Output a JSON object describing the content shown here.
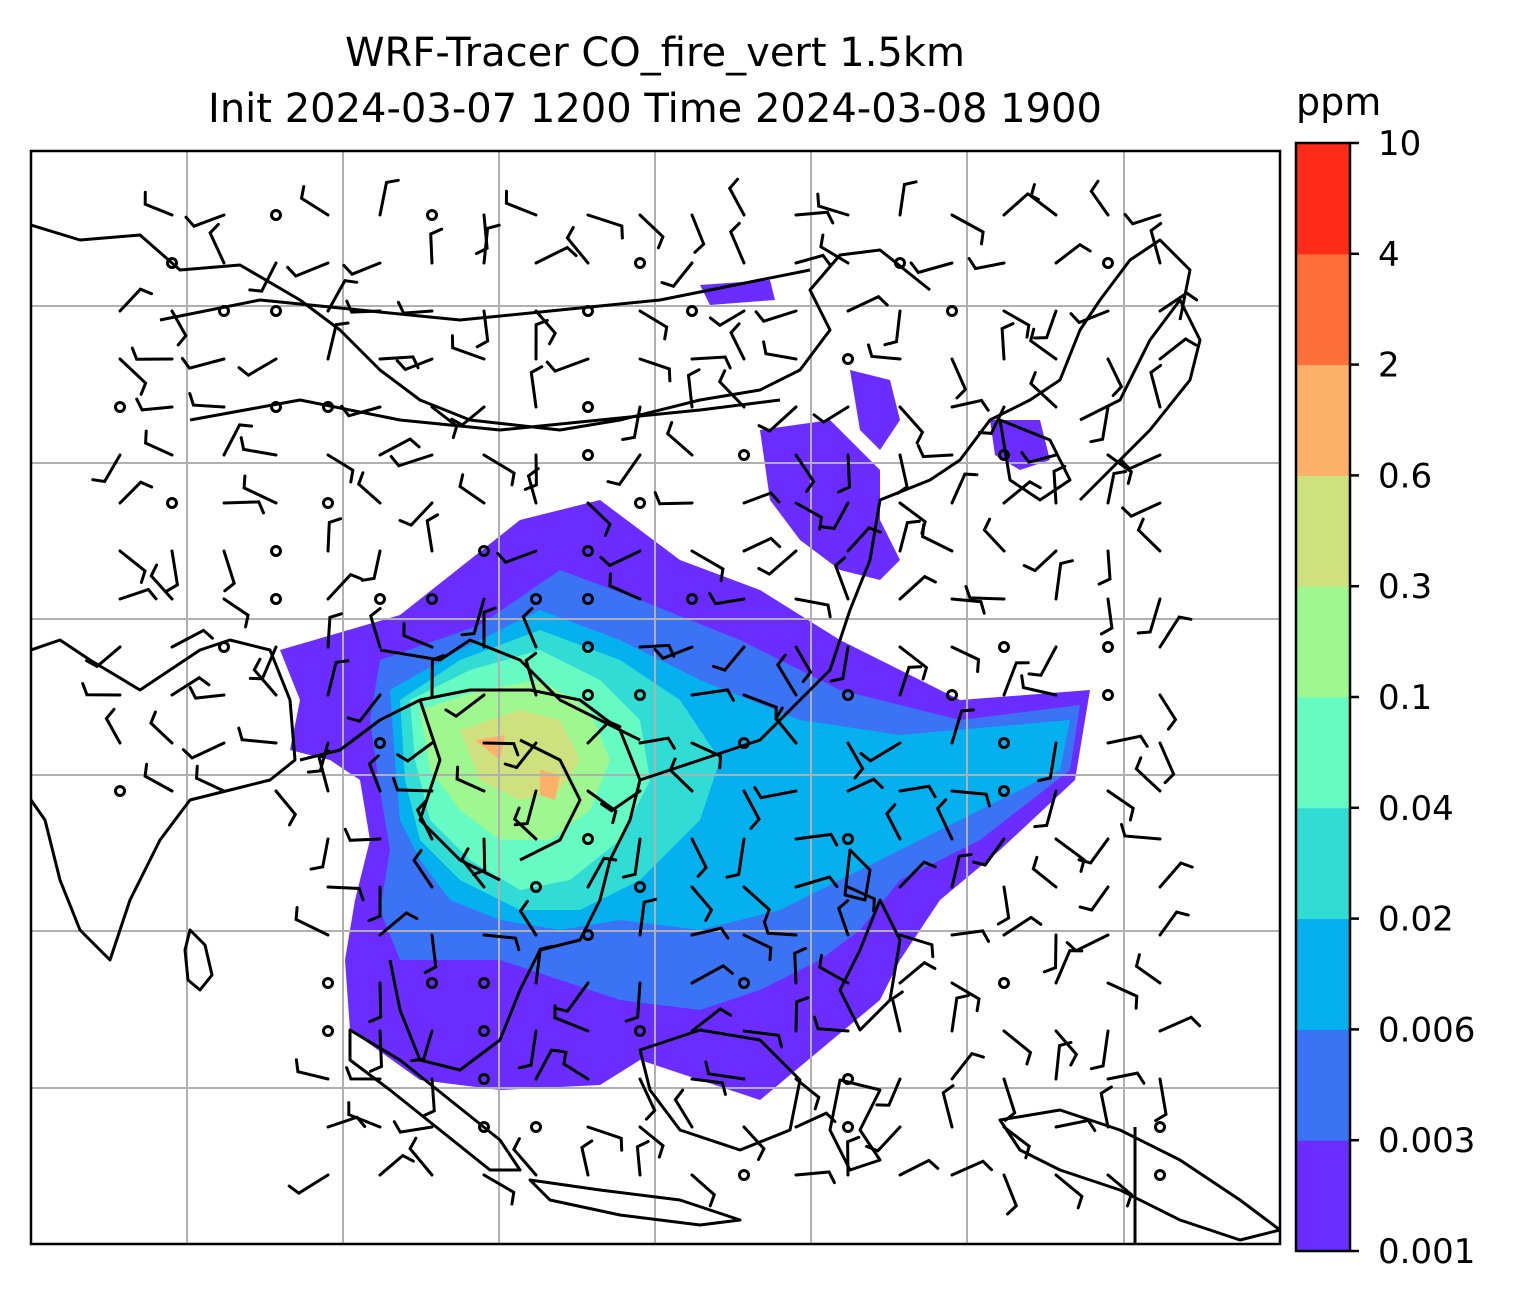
{
  "title": {
    "line1": "WRF-Tracer CO_fire_vert 1.5km",
    "line2": "Init 2024-03-07 1200 Time 2024-03-08 1900"
  },
  "colorbar": {
    "unit": "ppm",
    "levels": [
      "0.001",
      "0.003",
      "0.006",
      "0.02",
      "0.04",
      "0.1",
      "0.3",
      "0.6",
      "2",
      "4",
      "10"
    ],
    "colors": [
      "#6a2cff",
      "#3b73f5",
      "#05b0ee",
      "#30dcd3",
      "#65fbc2",
      "#9ef88f",
      "#cfe07f",
      "#fdb06a",
      "#ff6f3a",
      "#ff2a17"
    ]
  },
  "map": {
    "background": "#ffffff",
    "gridline_color": "#b0b0b0",
    "coastline_color": "#000000"
  }
}
